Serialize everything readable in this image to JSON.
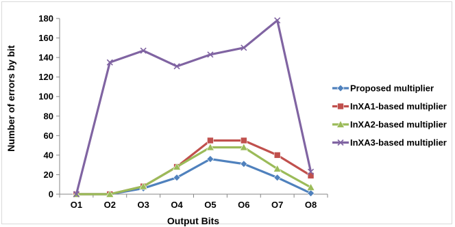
{
  "chart_data": {
    "type": "line",
    "title": "",
    "xlabel": "Output Bits",
    "ylabel": "Number of errors by bit",
    "categories": [
      "O1",
      "O2",
      "O3",
      "O4",
      "O5",
      "O6",
      "O7",
      "O8"
    ],
    "ylim": [
      0,
      180
    ],
    "yticks": [
      0,
      20,
      40,
      60,
      80,
      100,
      120,
      140,
      160,
      180
    ],
    "grid": false,
    "legend_position": "right",
    "series": [
      {
        "name": "Proposed multiplier",
        "color": "#4f81bd",
        "marker": "diamond",
        "values": [
          0,
          0,
          6,
          17,
          36,
          31,
          17,
          1
        ]
      },
      {
        "name": "InXA1-based multiplier",
        "color": "#c0504d",
        "marker": "square",
        "values": [
          0,
          0,
          8,
          28,
          55,
          55,
          40,
          19
        ]
      },
      {
        "name": "InXA2-based multiplier",
        "color": "#9bbb59",
        "marker": "triangle",
        "values": [
          0,
          0,
          8,
          28,
          48,
          48,
          26,
          7
        ]
      },
      {
        "name": "InXA3-based multiplier",
        "color": "#8064a2",
        "marker": "x",
        "values": [
          0,
          135,
          147,
          131,
          143,
          150,
          178,
          23
        ]
      }
    ]
  }
}
